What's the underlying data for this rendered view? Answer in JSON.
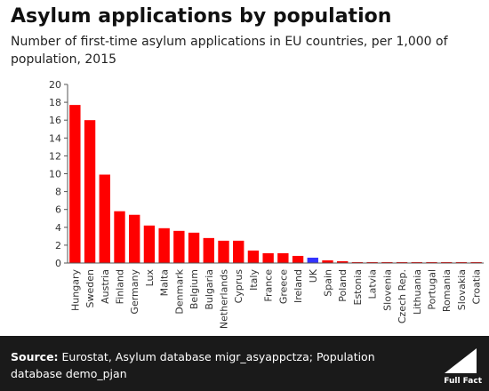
{
  "header": {
    "title": "Asylum applications by population",
    "subtitle": "Number of first-time asylum applications in EU countries, per 1,000 of population, 2015"
  },
  "footer": {
    "source_label": "Source:",
    "source_text": " Eurostat, Asylum database migr_asyappctza; Population database demo_pjan",
    "logo_text": "Full Fact"
  },
  "colors": {
    "bar": "#ff0000",
    "highlight": "#3333ff",
    "axis": "#555555",
    "footer_bg": "#1a1a1a"
  },
  "chart_data": {
    "type": "bar",
    "categories": [
      "Hungary",
      "Sweden",
      "Austria",
      "Finland",
      "Germany",
      "Lux",
      "Malta",
      "Denmark",
      "Belgium",
      "Bulgaria",
      "Netherlands",
      "Cyprus",
      "Italy",
      "France",
      "Greece",
      "Ireland",
      "UK",
      "Spain",
      "Poland",
      "Estonia",
      "Latvia",
      "Slovenia",
      "Czech Rep.",
      "Lithuania",
      "Portugal",
      "Romania",
      "Slovakia",
      "Croatia"
    ],
    "values": [
      17.7,
      16.0,
      9.9,
      5.8,
      5.4,
      4.2,
      3.9,
      3.6,
      3.4,
      2.8,
      2.5,
      2.5,
      1.4,
      1.1,
      1.1,
      0.8,
      0.6,
      0.3,
      0.2,
      0.1,
      0.1,
      0.1,
      0.1,
      0.1,
      0.1,
      0.1,
      0.1,
      0.1
    ],
    "highlight": "UK",
    "ylim": [
      0,
      20
    ],
    "yticks": [
      0,
      2,
      4,
      6,
      8,
      10,
      12,
      14,
      16,
      18,
      20
    ],
    "title": "Asylum applications by population",
    "xlabel": "",
    "ylabel": "",
    "grid": false,
    "legend": "none"
  }
}
